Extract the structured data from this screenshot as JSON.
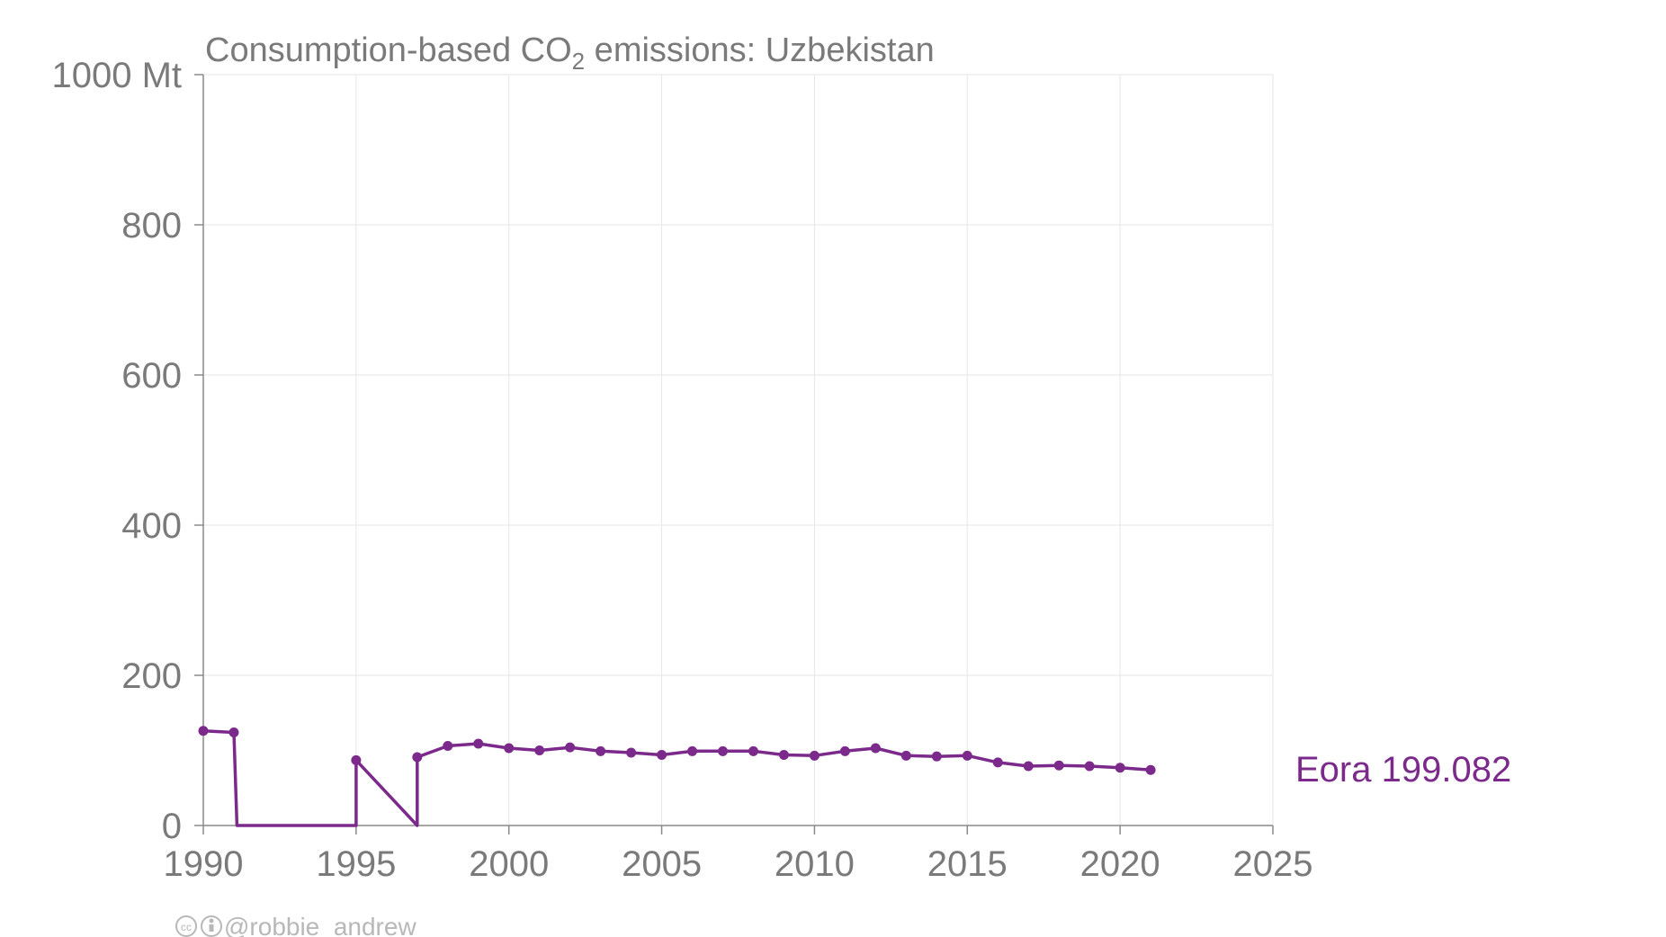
{
  "chart_data": {
    "type": "line",
    "title_main": "Consumption-based CO",
    "title_sub": "2",
    "title_rest": " emissions: Uzbekistan",
    "ylim": [
      0,
      1000
    ],
    "xlim": [
      1990,
      2025
    ],
    "y_ticks": [
      {
        "value": 0,
        "label": "0"
      },
      {
        "value": 200,
        "label": "200"
      },
      {
        "value": 400,
        "label": "400"
      },
      {
        "value": 600,
        "label": "600"
      },
      {
        "value": 800,
        "label": "800"
      },
      {
        "value": 1000,
        "label": "1000 Mt"
      }
    ],
    "x_ticks": [
      {
        "value": 1990,
        "label": "1990"
      },
      {
        "value": 1995,
        "label": "1995"
      },
      {
        "value": 2000,
        "label": "2000"
      },
      {
        "value": 2005,
        "label": "2005"
      },
      {
        "value": 2010,
        "label": "2010"
      },
      {
        "value": 2015,
        "label": "2015"
      },
      {
        "value": 2020,
        "label": "2020"
      },
      {
        "value": 2025,
        "label": "2025"
      }
    ],
    "grid": true,
    "series": [
      {
        "name": "Eora",
        "label": "Eora 199.082",
        "color": "#7b2a8b",
        "points": [
          [
            1990,
            126
          ],
          [
            1991,
            124
          ],
          [
            1991.1,
            0
          ],
          [
            1995,
            0
          ],
          [
            1995,
            87
          ],
          [
            1997,
            0
          ],
          [
            1997,
            91
          ],
          [
            1998,
            106
          ],
          [
            1999,
            109
          ],
          [
            2000,
            103
          ],
          [
            2001,
            100
          ],
          [
            2002,
            104
          ],
          [
            2003,
            99
          ],
          [
            2004,
            97
          ],
          [
            2005,
            94
          ],
          [
            2006,
            99
          ],
          [
            2007,
            99
          ],
          [
            2008,
            99
          ],
          [
            2009,
            94
          ],
          [
            2010,
            93
          ],
          [
            2011,
            99
          ],
          [
            2012,
            103
          ],
          [
            2013,
            93
          ],
          [
            2014,
            92
          ],
          [
            2015,
            93
          ],
          [
            2016,
            84
          ],
          [
            2017,
            79
          ],
          [
            2018,
            80
          ],
          [
            2019,
            79
          ],
          [
            2020,
            77
          ],
          [
            2021,
            74
          ]
        ],
        "markers": [
          [
            1990,
            126
          ],
          [
            1991,
            124
          ],
          [
            1995,
            87
          ],
          [
            1997,
            91
          ],
          [
            1998,
            106
          ],
          [
            1999,
            109
          ],
          [
            2000,
            103
          ],
          [
            2001,
            100
          ],
          [
            2002,
            104
          ],
          [
            2003,
            99
          ],
          [
            2004,
            97
          ],
          [
            2005,
            94
          ],
          [
            2006,
            99
          ],
          [
            2007,
            99
          ],
          [
            2008,
            99
          ],
          [
            2009,
            94
          ],
          [
            2010,
            93
          ],
          [
            2011,
            99
          ],
          [
            2012,
            103
          ],
          [
            2013,
            93
          ],
          [
            2014,
            92
          ],
          [
            2015,
            93
          ],
          [
            2016,
            84
          ],
          [
            2017,
            79
          ],
          [
            2018,
            80
          ],
          [
            2019,
            79
          ],
          [
            2020,
            77
          ],
          [
            2021,
            74
          ]
        ]
      }
    ]
  },
  "credit": {
    "icons": [
      "cc-icon",
      "attribution-icon"
    ],
    "handle": "@robbie_andrew"
  }
}
